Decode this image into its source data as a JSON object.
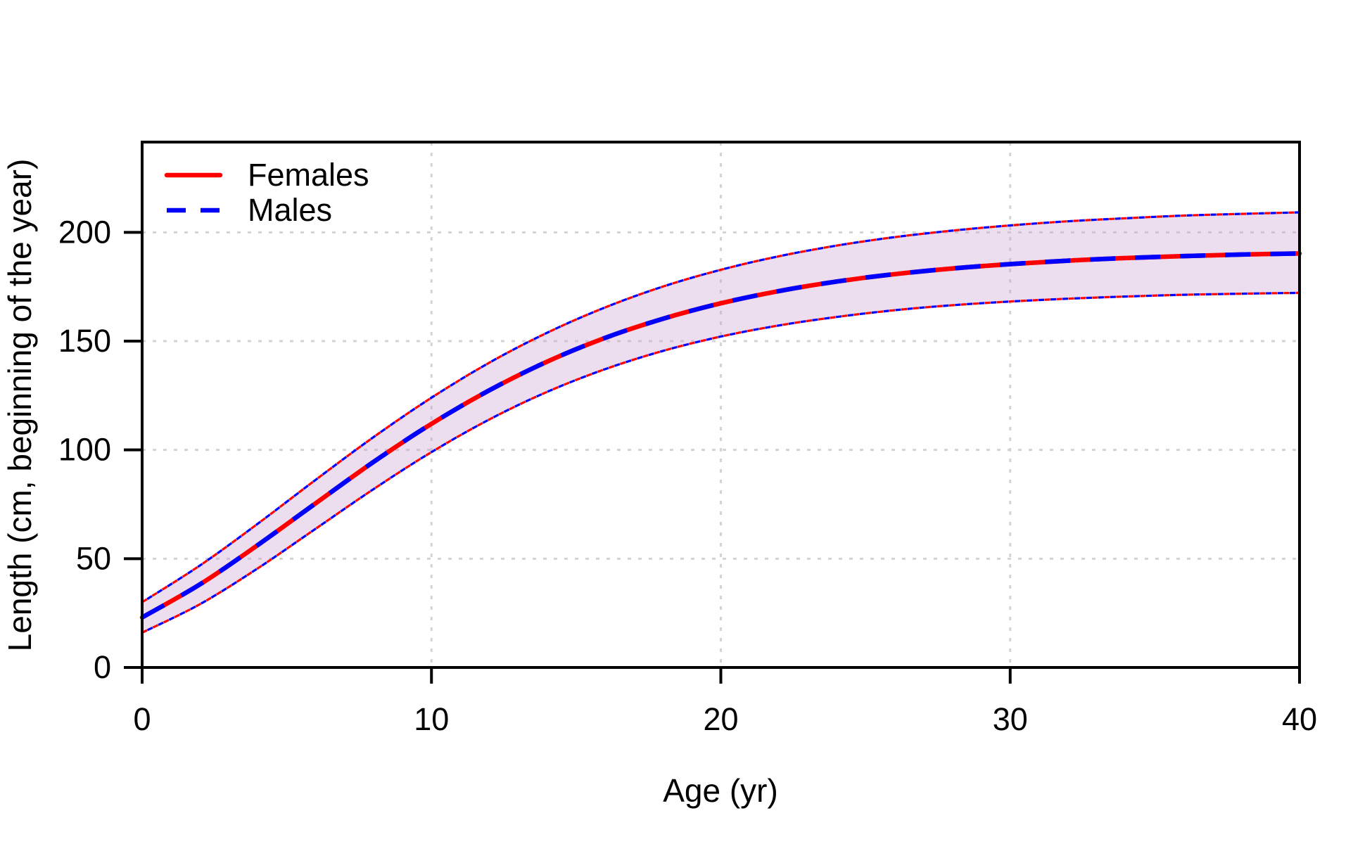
{
  "chart_data": {
    "type": "line",
    "title": "",
    "xlabel": "Age (yr)",
    "ylabel": "Length (cm, beginning of the year)",
    "xlim": [
      0,
      40
    ],
    "ylim": [
      0,
      241.5
    ],
    "x_ticks": [
      0,
      10,
      20,
      30,
      40
    ],
    "y_ticks": [
      0,
      50,
      100,
      150,
      200
    ],
    "grid": {
      "style": "dotted",
      "color": "#D3D3D3",
      "x_lines": [
        10,
        20,
        30
      ],
      "y_lines": [
        50,
        100,
        150,
        200
      ]
    },
    "axis_color": "#000000",
    "note": "Female and male mean growth curves overlap exactly; shaded region is the confidence band bounded by thin red/blue dashed lines.",
    "legend": {
      "position": "top-left",
      "entries": [
        {
          "label": "Females",
          "color": "#FF0000",
          "line_style": "solid"
        },
        {
          "label": "Males",
          "color": "#0000FF",
          "line_style": "dashed"
        }
      ]
    },
    "band": {
      "fill": "#C9A0CD",
      "opacity": 0.35
    },
    "x": [
      0,
      2,
      4,
      6,
      8,
      10,
      12,
      14,
      16,
      18,
      20,
      22,
      24,
      26,
      28,
      30,
      32,
      34,
      36,
      38,
      40
    ],
    "series": [
      {
        "name": "Females",
        "role": "mean",
        "color": "#FF0000",
        "line_style": "solid",
        "values": [
          23.0,
          38.2,
          56.3,
          75.5,
          94.5,
          112.0,
          127.4,
          140.6,
          151.5,
          160.3,
          167.4,
          173.0,
          177.4,
          180.8,
          183.4,
          185.4,
          187.0,
          188.2,
          189.1,
          189.8,
          190.3
        ]
      },
      {
        "name": "Males",
        "role": "mean",
        "color": "#0000FF",
        "line_style": "dashed",
        "values": [
          23.0,
          38.2,
          56.3,
          75.5,
          94.5,
          112.0,
          127.4,
          140.6,
          151.5,
          160.3,
          167.4,
          173.0,
          177.4,
          180.8,
          183.4,
          185.4,
          187.0,
          188.2,
          189.1,
          189.8,
          190.3
        ]
      },
      {
        "name": "ci_lower",
        "role": "band_lower",
        "color": "#FF0000",
        "line_style": "dashed-thin",
        "values": [
          16.0,
          29.1,
          45.6,
          63.8,
          82.0,
          99.0,
          114.0,
          126.7,
          137.1,
          145.5,
          152.1,
          157.2,
          161.1,
          164.2,
          166.5,
          168.2,
          169.5,
          170.5,
          171.3,
          171.8,
          172.2
        ]
      },
      {
        "name": "ci_upper",
        "role": "band_upper",
        "color": "#0000FF",
        "line_style": "dashed-thin",
        "values": [
          30.0,
          46.9,
          66.1,
          86.3,
          105.9,
          124.0,
          140.1,
          153.9,
          165.5,
          175.1,
          182.8,
          189.0,
          193.9,
          197.8,
          200.8,
          203.2,
          205.1,
          206.5,
          207.7,
          208.5,
          209.2
        ]
      }
    ]
  }
}
